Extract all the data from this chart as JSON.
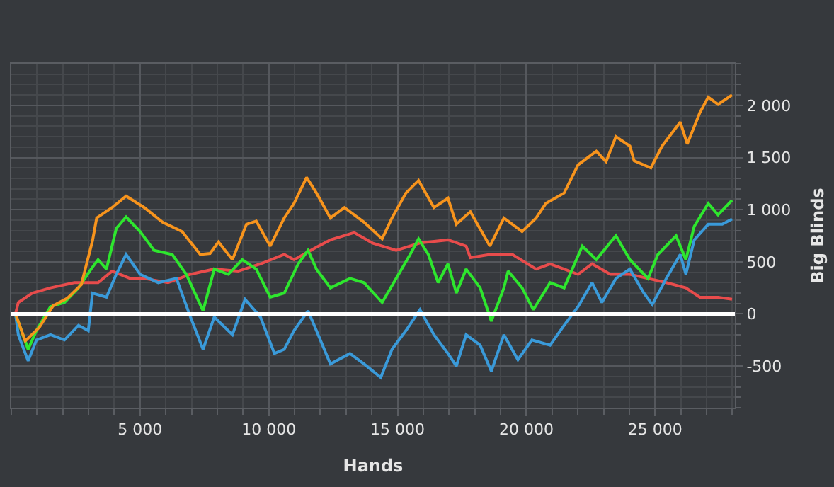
{
  "chart_data": {
    "type": "line",
    "xlabel": "Hands",
    "ylabel": "Big Blinds",
    "xlim": [
      0,
      28100
    ],
    "ylim": [
      -900,
      2400
    ],
    "xticks": [
      {
        "value": 5000,
        "label": "5 000"
      },
      {
        "value": 10000,
        "label": "10 000"
      },
      {
        "value": 15000,
        "label": "15 000"
      },
      {
        "value": 20000,
        "label": "20 000"
      },
      {
        "value": 25000,
        "label": "25 000"
      }
    ],
    "yticks": [
      {
        "value": -500,
        "label": "-500"
      },
      0,
      500,
      {
        "value": 1000,
        "label": "1 000"
      },
      {
        "value": 1500,
        "label": "1 500"
      },
      {
        "value": 2000,
        "label": "2 000"
      }
    ],
    "grid": true,
    "marker": "none",
    "line_style": "solid",
    "ref_lines": [
      {
        "axis": "y",
        "value": 0,
        "label": null,
        "color": "#ffffff"
      }
    ],
    "series": [
      {
        "color": "#e84c4c",
        "x": [
          163,
          272,
          815,
          1522,
          2446,
          3370,
          3913,
          4620,
          5163,
          6087,
          6957,
          7881,
          8805,
          9674,
          10598,
          10978,
          11848,
          12391,
          13315,
          14022,
          14946,
          15870,
          16957,
          17663,
          17826,
          18587,
          19457,
          20381,
          20924,
          21468,
          22011,
          22555,
          23261,
          24022,
          24728,
          25435,
          26196,
          26739,
          27446,
          27989
        ],
        "values": [
          0,
          110,
          200,
          250,
          300,
          300,
          410,
          340,
          340,
          300,
          380,
          430,
          410,
          480,
          570,
          520,
          640,
          710,
          780,
          680,
          610,
          680,
          710,
          650,
          540,
          570,
          570,
          430,
          480,
          430,
          380,
          480,
          380,
          380,
          340,
          300,
          250,
          160,
          160,
          140
        ]
      },
      {
        "color": "#3a9ad9",
        "x": [
          163,
          272,
          652,
          978,
          1522,
          2065,
          2609,
          2989,
          3152,
          3696,
          4076,
          4457,
          5000,
          5707,
          6413,
          6957,
          7446,
          7881,
          8587,
          9076,
          9674,
          10218,
          10598,
          10978,
          11522,
          11848,
          12391,
          13152,
          13696,
          14348,
          14783,
          15326,
          15870,
          16413,
          16957,
          17283,
          17663,
          18207,
          18641,
          19130,
          19674,
          20218,
          20924,
          21468,
          22011,
          22555,
          22935,
          23479,
          24022,
          24565,
          24891,
          25435,
          25978,
          26196,
          26522,
          27065,
          27609,
          27989
        ],
        "values": [
          0,
          -200,
          -450,
          -250,
          -200,
          -250,
          -110,
          -160,
          200,
          160,
          380,
          570,
          380,
          300,
          340,
          -30,
          -340,
          -30,
          -200,
          140,
          -30,
          -380,
          -340,
          -160,
          30,
          -160,
          -480,
          -380,
          -480,
          -610,
          -340,
          -160,
          40,
          -200,
          -380,
          -500,
          -200,
          -300,
          -550,
          -200,
          -440,
          -250,
          -300,
          -110,
          70,
          300,
          110,
          340,
          430,
          200,
          90,
          340,
          570,
          380,
          710,
          860,
          860,
          910
        ]
      },
      {
        "color": "#2ee62e",
        "x": [
          163,
          652,
          978,
          1522,
          2065,
          2609,
          3098,
          3370,
          3696,
          4076,
          4457,
          5000,
          5544,
          6250,
          6794,
          7446,
          7881,
          8424,
          8967,
          9511,
          10054,
          10598,
          11141,
          11522,
          11848,
          12391,
          13152,
          13696,
          14402,
          14946,
          15489,
          15815,
          16196,
          16576,
          16957,
          17283,
          17663,
          18207,
          18641,
          19130,
          19294,
          19837,
          20272,
          20924,
          21468,
          22174,
          22718,
          23479,
          24022,
          24728,
          25109,
          25815,
          26196,
          26522,
          27065,
          27446,
          27989
        ],
        "values": [
          0,
          -340,
          -160,
          70,
          110,
          250,
          430,
          520,
          430,
          820,
          930,
          790,
          610,
          570,
          380,
          30,
          430,
          380,
          520,
          430,
          160,
          200,
          480,
          610,
          430,
          250,
          340,
          300,
          110,
          340,
          570,
          720,
          570,
          300,
          480,
          200,
          430,
          250,
          -70,
          250,
          410,
          250,
          40,
          300,
          250,
          650,
          520,
          750,
          520,
          340,
          570,
          750,
          520,
          840,
          1060,
          950,
          1090
        ]
      },
      {
        "color": "#f7941d",
        "x": [
          163,
          543,
          1087,
          1630,
          2174,
          2717,
          3152,
          3315,
          3913,
          4457,
          5163,
          5870,
          6630,
          7337,
          7718,
          8044,
          8587,
          9131,
          9511,
          10054,
          10598,
          10978,
          11467,
          11848,
          12391,
          12935,
          13696,
          14402,
          14783,
          15326,
          15815,
          16413,
          16957,
          17283,
          17826,
          18587,
          19130,
          19837,
          20381,
          20761,
          21468,
          22011,
          22718,
          23098,
          23479,
          24022,
          24185,
          24837,
          25272,
          25978,
          26250,
          26739,
          27065,
          27446,
          27989
        ],
        "values": [
          0,
          -260,
          -130,
          80,
          150,
          280,
          700,
          920,
          1020,
          1130,
          1020,
          880,
          790,
          570,
          580,
          690,
          520,
          860,
          890,
          650,
          920,
          1060,
          1310,
          1160,
          920,
          1020,
          880,
          720,
          920,
          1160,
          1280,
          1020,
          1110,
          860,
          980,
          650,
          920,
          790,
          920,
          1060,
          1160,
          1430,
          1560,
          1460,
          1700,
          1610,
          1470,
          1400,
          1610,
          1840,
          1630,
          1930,
          2080,
          2010,
          2100
        ]
      }
    ]
  }
}
